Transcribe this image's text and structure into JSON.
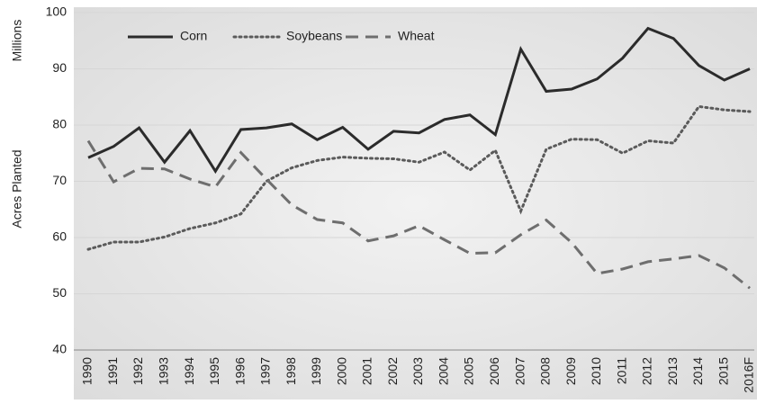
{
  "chart_data": {
    "type": "line",
    "y_label_unit": "Millions",
    "y_label": "Acres Planted",
    "categories": [
      "1990",
      "1991",
      "1992",
      "1993",
      "1994",
      "1995",
      "1996",
      "1997",
      "1998",
      "1999",
      "2000",
      "2001",
      "2002",
      "2003",
      "2004",
      "2005",
      "2006",
      "2007",
      "2008",
      "2009",
      "2010",
      "2011",
      "2012",
      "2013",
      "2014",
      "2015",
      "2016F"
    ],
    "series": [
      {
        "name": "Corn",
        "color": "#2b2b2b",
        "style": "solid",
        "values": [
          74.2,
          76.2,
          79.5,
          73.4,
          79.0,
          71.8,
          79.2,
          79.5,
          80.2,
          77.4,
          79.6,
          75.7,
          78.9,
          78.6,
          81.0,
          81.8,
          78.3,
          93.5,
          86.0,
          86.4,
          88.2,
          91.9,
          97.2,
          95.4,
          90.6,
          88.0,
          90.0
        ]
      },
      {
        "name": "Soybeans",
        "color": "#5a5a5a",
        "style": "dotted",
        "values": [
          57.9,
          59.2,
          59.2,
          60.1,
          61.6,
          62.6,
          64.2,
          70.0,
          72.4,
          73.7,
          74.3,
          74.1,
          74.0,
          73.4,
          75.2,
          72.0,
          75.5,
          64.7,
          75.7,
          77.5,
          77.4,
          75.0,
          77.2,
          76.8,
          83.3,
          82.7,
          82.4
        ]
      },
      {
        "name": "Wheat",
        "color": "#6e6e6e",
        "style": "dashed",
        "values": [
          77.2,
          69.9,
          72.3,
          72.2,
          70.4,
          69.0,
          75.1,
          70.4,
          65.8,
          63.2,
          62.6,
          59.4,
          60.3,
          62.1,
          59.6,
          57.2,
          57.3,
          60.5,
          63.1,
          59.1,
          53.6,
          54.4,
          55.7,
          56.2,
          56.8,
          54.6,
          51.0
        ]
      }
    ],
    "ylim": [
      40,
      100
    ],
    "yticks": [
      40,
      50,
      60,
      70,
      80,
      90,
      100
    ],
    "grid": true,
    "legend": "top"
  }
}
